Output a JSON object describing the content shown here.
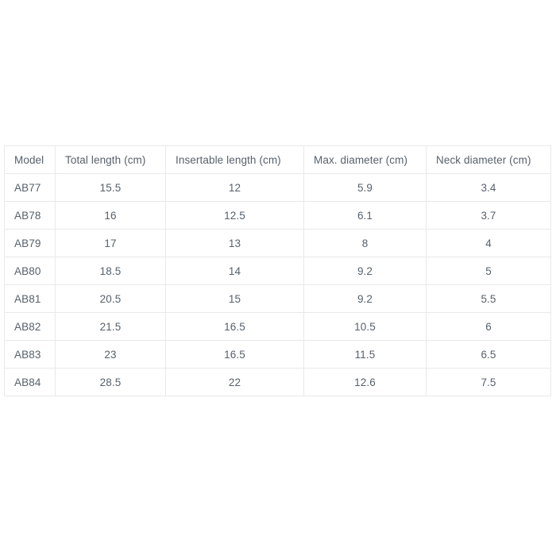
{
  "colors": {
    "page_background": "#ffffff",
    "text": "#57616b",
    "border": "#e9e9e9"
  },
  "chart_data": {
    "type": "table",
    "title": "",
    "columns": [
      "Model",
      "Total length (cm)",
      "Insertable length (cm)",
      "Max. diameter (cm)",
      "Neck diameter (cm)"
    ],
    "rows": [
      [
        "AB77",
        "15.5",
        "12",
        "5.9",
        "3.4"
      ],
      [
        "AB78",
        "16",
        "12.5",
        "6.1",
        "3.7"
      ],
      [
        "AB79",
        "17",
        "13",
        "8",
        "4"
      ],
      [
        "AB80",
        "18.5",
        "14",
        "9.2",
        "5"
      ],
      [
        "AB81",
        "20.5",
        "15",
        "9.2",
        "5.5"
      ],
      [
        "AB82",
        "21.5",
        "16.5",
        "10.5",
        "6"
      ],
      [
        "AB83",
        "23",
        "16.5",
        "11.5",
        "6.5"
      ],
      [
        "AB84",
        "28.5",
        "22",
        "12.6",
        "7.5"
      ]
    ]
  }
}
